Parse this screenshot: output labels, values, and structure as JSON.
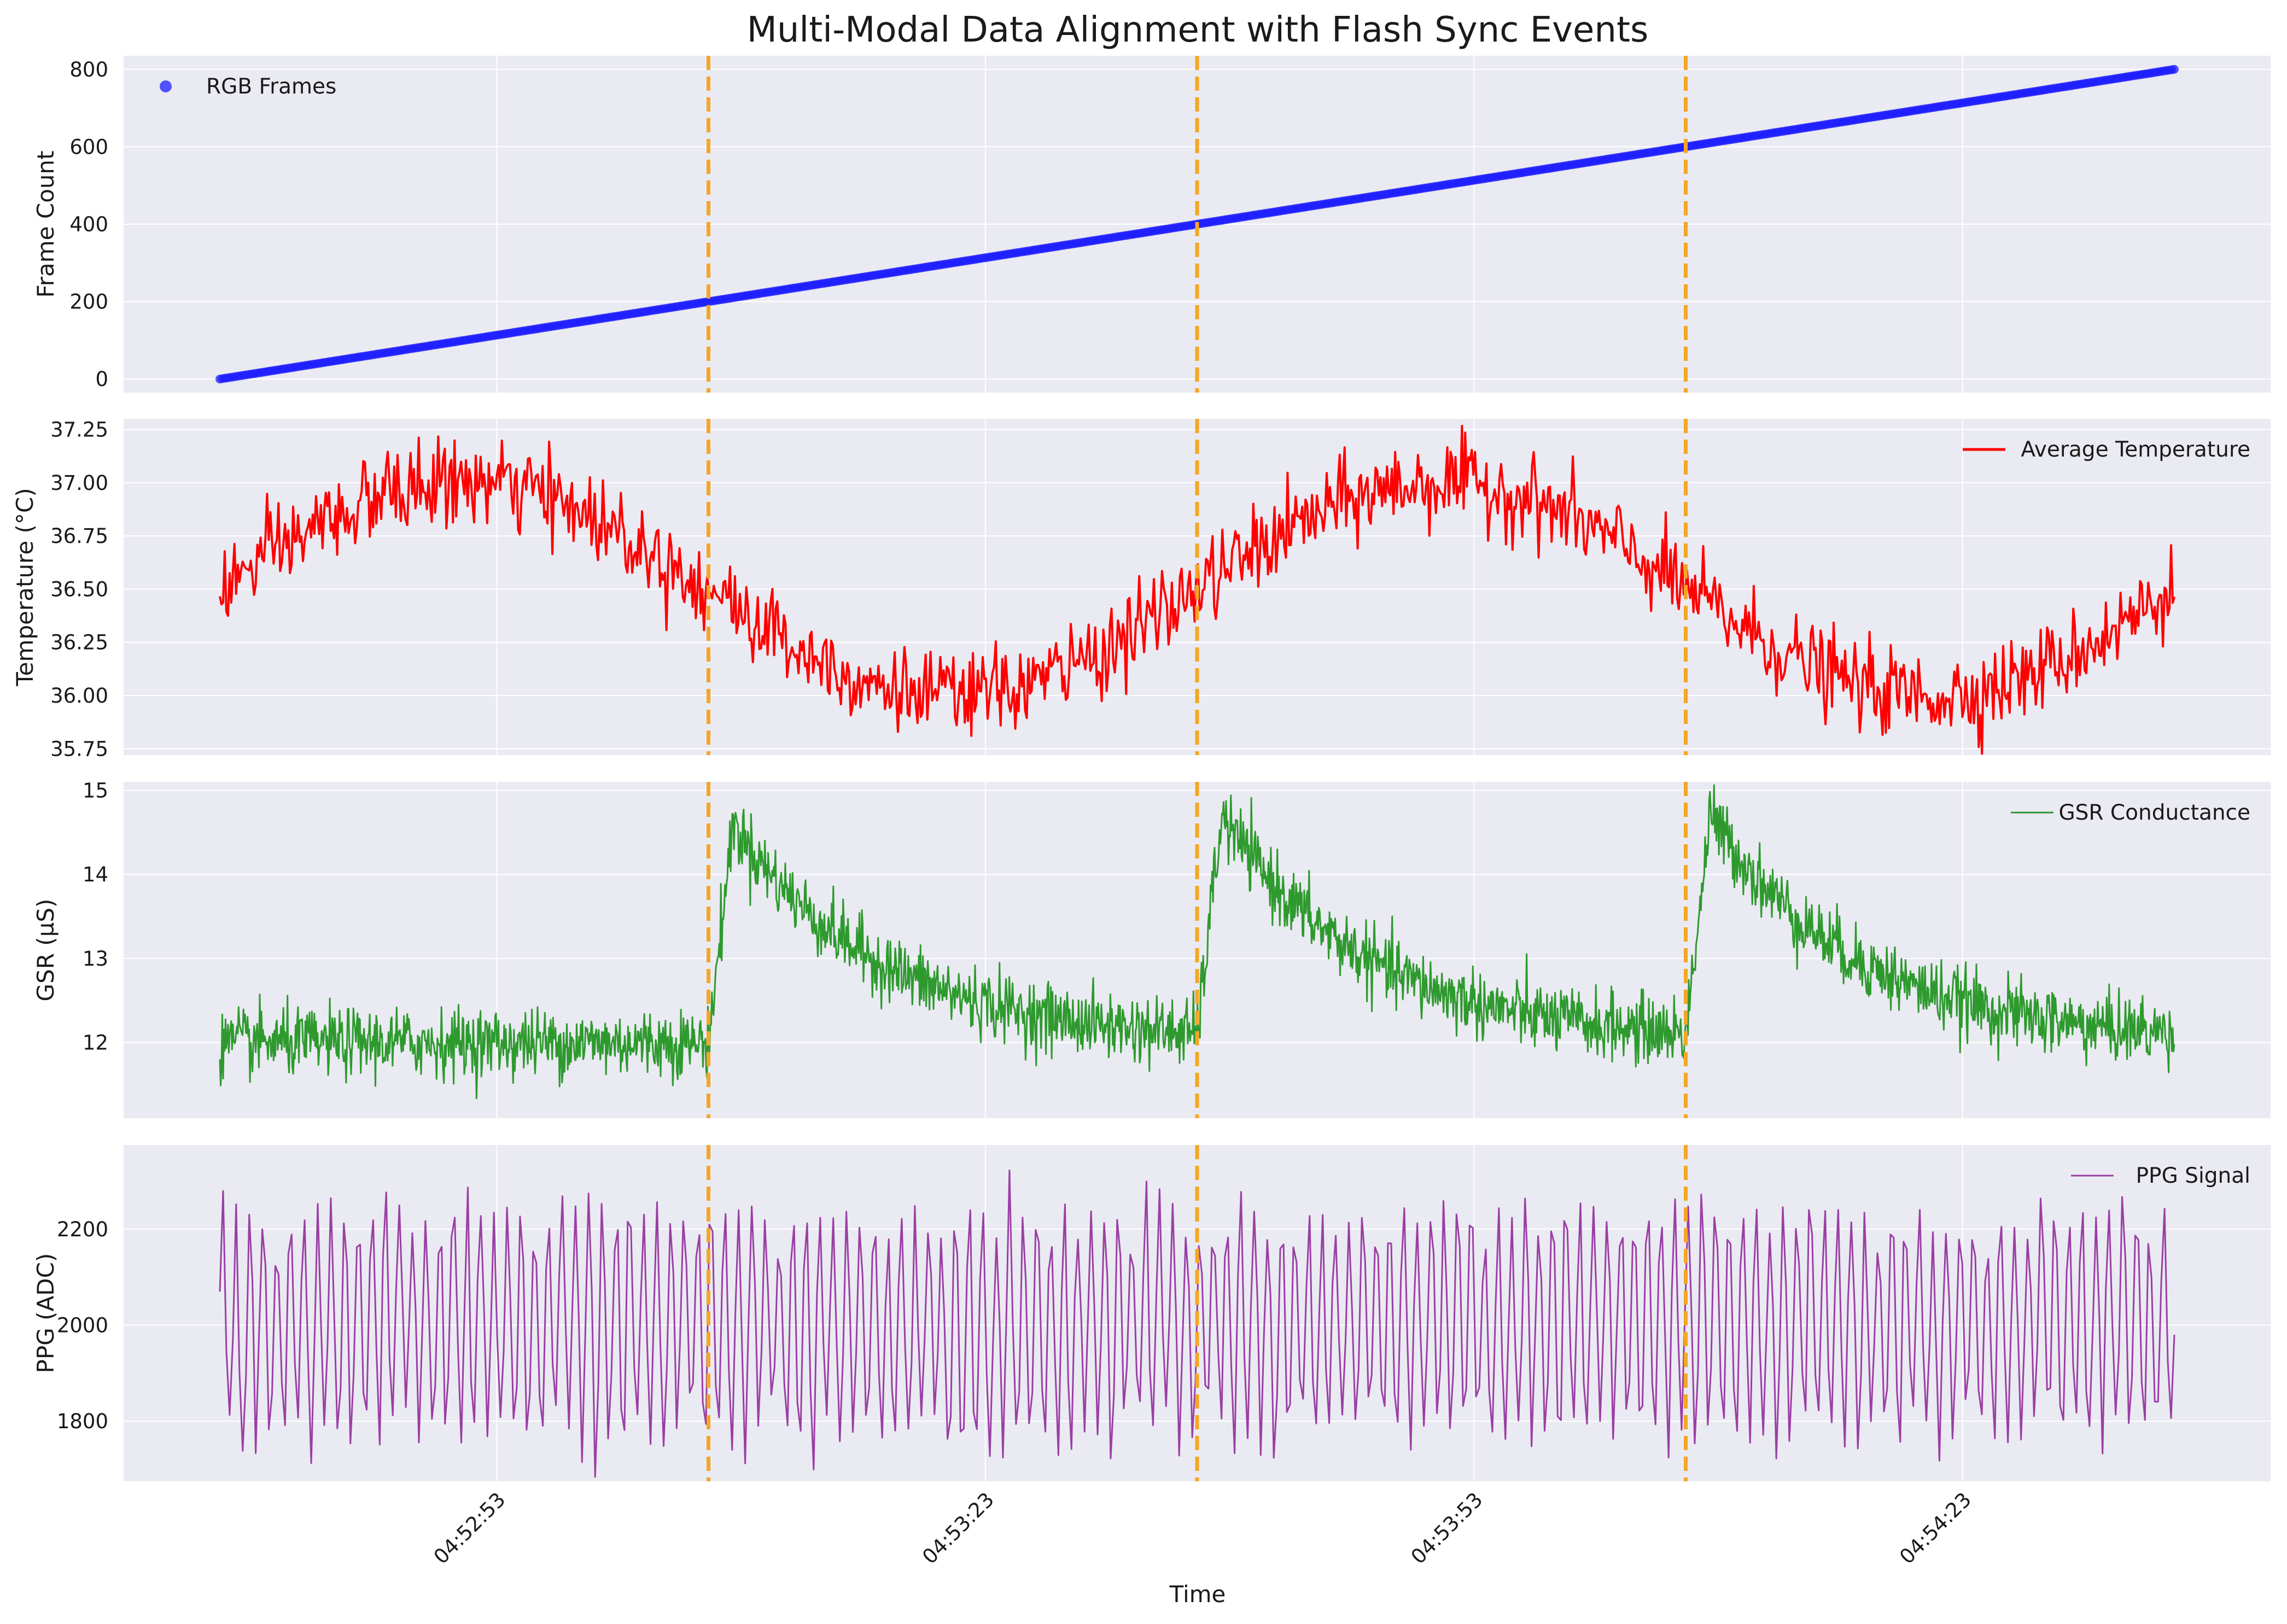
{
  "figure": {
    "title": "Multi-Modal Data Alignment with Flash Sync Events",
    "xlabel": "Time",
    "x_tick_labels": [
      "04:52:53",
      "04:53:23",
      "04:53:53",
      "04:54:23"
    ],
    "x_tick_values": [
      17,
      47,
      77,
      107
    ],
    "x_range": [
      0,
      120
    ],
    "x_unit_note": "seconds since 04:52:36",
    "flash_sync_events": [
      30,
      60,
      90
    ],
    "flash_color": "#f5a623",
    "panel_background": "#eaeaf2",
    "grid": true
  },
  "chart_data": [
    {
      "type": "scatter",
      "name": "frames-panel",
      "series": [
        {
          "name": "RGB Frames",
          "color": "#1f1fff",
          "x_range": [
            0,
            120
          ],
          "y_range": [
            0,
            800
          ],
          "points": 800
        }
      ],
      "ylabel": "Frame Count",
      "ylim": [
        -35,
        835
      ],
      "yticks": [
        0,
        200,
        400,
        600,
        800
      ],
      "ytick_labels": [
        "0",
        "200",
        "400",
        "600",
        "800"
      ],
      "legend": "upper-left"
    },
    {
      "type": "line",
      "name": "temperature-panel",
      "series": [
        {
          "name": "Average Temperature",
          "color": "#ff0000",
          "model": "36.5 + 0.5*sin(2*pi*x/60) + noise(0.1)",
          "samples": 1200
        }
      ],
      "ylabel": "Temperature (°C)",
      "ylim": [
        35.72,
        37.3
      ],
      "yticks": [
        35.75,
        36.0,
        36.25,
        36.5,
        36.75,
        37.0,
        37.25
      ],
      "ytick_labels": [
        "35.75",
        "36.00",
        "36.25",
        "36.50",
        "36.75",
        "37.00",
        "37.25"
      ],
      "legend": "upper-right"
    },
    {
      "type": "line",
      "name": "gsr-panel",
      "series": [
        {
          "name": "GSR Conductance",
          "color": "#2e9a2e",
          "model": "baseline 12.0, rises to ~14.6 after each sync event then decays",
          "samples": 2400
        }
      ],
      "ylabel": "GSR (µS)",
      "ylim": [
        11.1,
        15.1
      ],
      "yticks": [
        12,
        13,
        14,
        15
      ],
      "ytick_labels": [
        "12",
        "13",
        "14",
        "15"
      ],
      "legend": "upper-right"
    },
    {
      "type": "line",
      "name": "ppg-panel",
      "series": [
        {
          "name": "PPG Signal",
          "color": "#9b3fa5",
          "model": "2000 + 230*sin(2*pi*1.2*x) + noise",
          "samples": 600
        }
      ],
      "ylabel": "PPG (ADC)",
      "ylim": [
        1675,
        2375
      ],
      "yticks": [
        1800,
        2000,
        2200
      ],
      "ytick_labels": [
        "1800",
        "2000",
        "2200"
      ],
      "legend": "upper-right"
    }
  ]
}
